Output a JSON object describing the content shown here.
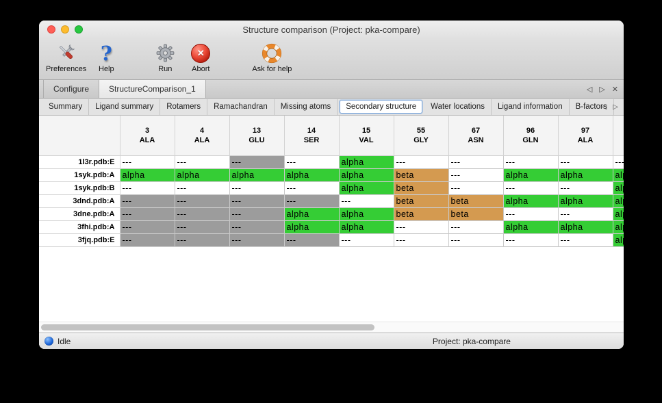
{
  "window": {
    "title": "Structure comparison (Project: pka-compare)"
  },
  "toolbar": {
    "items": [
      {
        "label": "Preferences",
        "icon": "preferences-tools-icon"
      },
      {
        "label": "Help",
        "icon": "help-question-icon"
      },
      {
        "label": "Run",
        "icon": "run-gear-icon"
      },
      {
        "label": "Abort",
        "icon": "abort-cross-icon"
      },
      {
        "label": "Ask for help",
        "icon": "ask-for-help-lifering-icon"
      }
    ]
  },
  "tabbar": {
    "tabs": [
      {
        "label": "Configure",
        "selected": false
      },
      {
        "label": "StructureComparison_1",
        "selected": true
      }
    ],
    "nav": {
      "prev": "◁",
      "next": "▷",
      "close": "✕"
    }
  },
  "subtabbar": {
    "tabs": [
      {
        "label": "Summary",
        "selected": false
      },
      {
        "label": "Ligand summary",
        "selected": false
      },
      {
        "label": "Rotamers",
        "selected": false
      },
      {
        "label": "Ramachandran",
        "selected": false
      },
      {
        "label": "Missing atoms",
        "selected": false
      },
      {
        "label": "Secondary structure",
        "selected": true
      },
      {
        "label": "Water locations",
        "selected": false
      },
      {
        "label": "Ligand information",
        "selected": false
      },
      {
        "label": "B-factors",
        "selected": false
      }
    ],
    "nav": {
      "prev": "◁",
      "next": "▷"
    }
  },
  "table": {
    "columns": [
      {
        "num": "3",
        "res": "ALA"
      },
      {
        "num": "4",
        "res": "ALA"
      },
      {
        "num": "13",
        "res": "GLU"
      },
      {
        "num": "14",
        "res": "SER"
      },
      {
        "num": "15",
        "res": "VAL"
      },
      {
        "num": "55",
        "res": "GLY"
      },
      {
        "num": "67",
        "res": "ASN"
      },
      {
        "num": "96",
        "res": "GLN"
      },
      {
        "num": "97",
        "res": "ALA"
      },
      {
        "num": "",
        "res": ""
      }
    ],
    "cell_labels": {
      "alpha": "alpha",
      "beta": "beta",
      "none": "---",
      "gap": "---"
    },
    "rows": [
      {
        "name": "1l3r.pdb:E",
        "cells": [
          "none",
          "none",
          "gap",
          "none",
          "alpha",
          "none",
          "none",
          "none",
          "none",
          "none"
        ]
      },
      {
        "name": "1syk.pdb:A",
        "cells": [
          "alpha",
          "alpha",
          "alpha",
          "alpha",
          "alpha",
          "beta",
          "none",
          "alpha",
          "alpha",
          "alpha"
        ]
      },
      {
        "name": "1syk.pdb:B",
        "cells": [
          "none",
          "none",
          "none",
          "none",
          "alpha",
          "beta",
          "none",
          "none",
          "none",
          "alpha"
        ]
      },
      {
        "name": "3dnd.pdb:A",
        "cells": [
          "gap",
          "gap",
          "gap",
          "gap",
          "none",
          "beta",
          "beta",
          "alpha",
          "alpha",
          "alpha"
        ]
      },
      {
        "name": "3dne.pdb:A",
        "cells": [
          "gap",
          "gap",
          "gap",
          "alpha",
          "alpha",
          "beta",
          "beta",
          "none",
          "none",
          "alpha"
        ]
      },
      {
        "name": "3fhi.pdb:A",
        "cells": [
          "gap",
          "gap",
          "gap",
          "alpha",
          "alpha",
          "none",
          "none",
          "alpha",
          "alpha",
          "alpha"
        ]
      },
      {
        "name": "3fjq.pdb:E",
        "cells": [
          "gap",
          "gap",
          "gap",
          "gap",
          "none",
          "none",
          "none",
          "none",
          "none",
          "alpha"
        ]
      }
    ]
  },
  "colors": {
    "alpha": "#35cd35",
    "beta": "#d49a50",
    "gap": "#9c9c9c",
    "none": "#ffffff"
  },
  "statusbar": {
    "status": "Idle",
    "project": "Project: pka-compare"
  }
}
